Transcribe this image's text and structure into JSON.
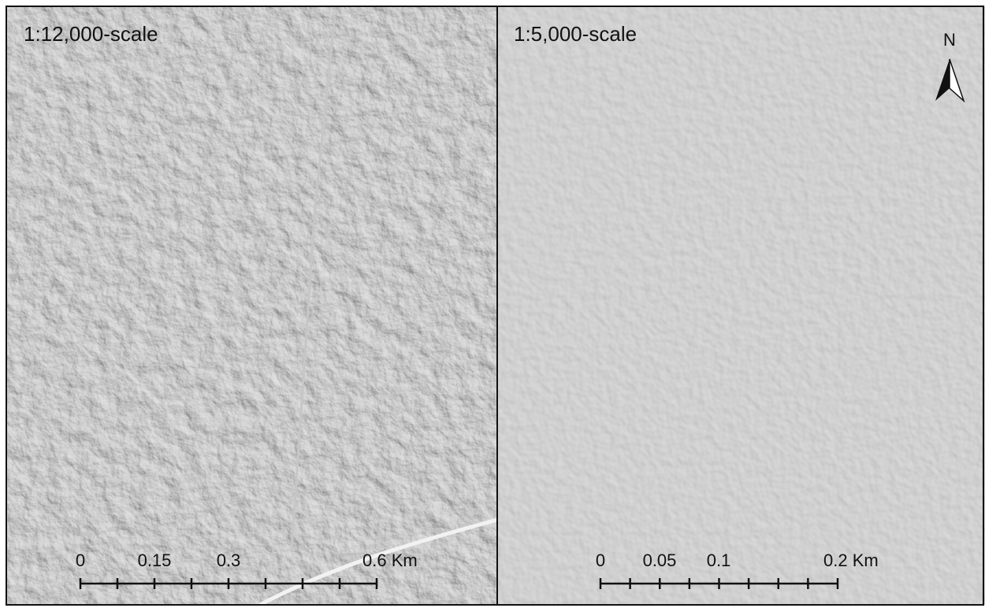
{
  "panels": [
    {
      "title": "1:12,000-scale",
      "scale_bar": {
        "labels": [
          "0",
          "0.15",
          "0.3",
          "0.6 Km"
        ]
      }
    },
    {
      "title": "1:5,000-scale",
      "scale_bar": {
        "labels": [
          "0",
          "0.05",
          "0.1",
          "0.2 Km"
        ]
      },
      "north_arrow": "N"
    }
  ]
}
